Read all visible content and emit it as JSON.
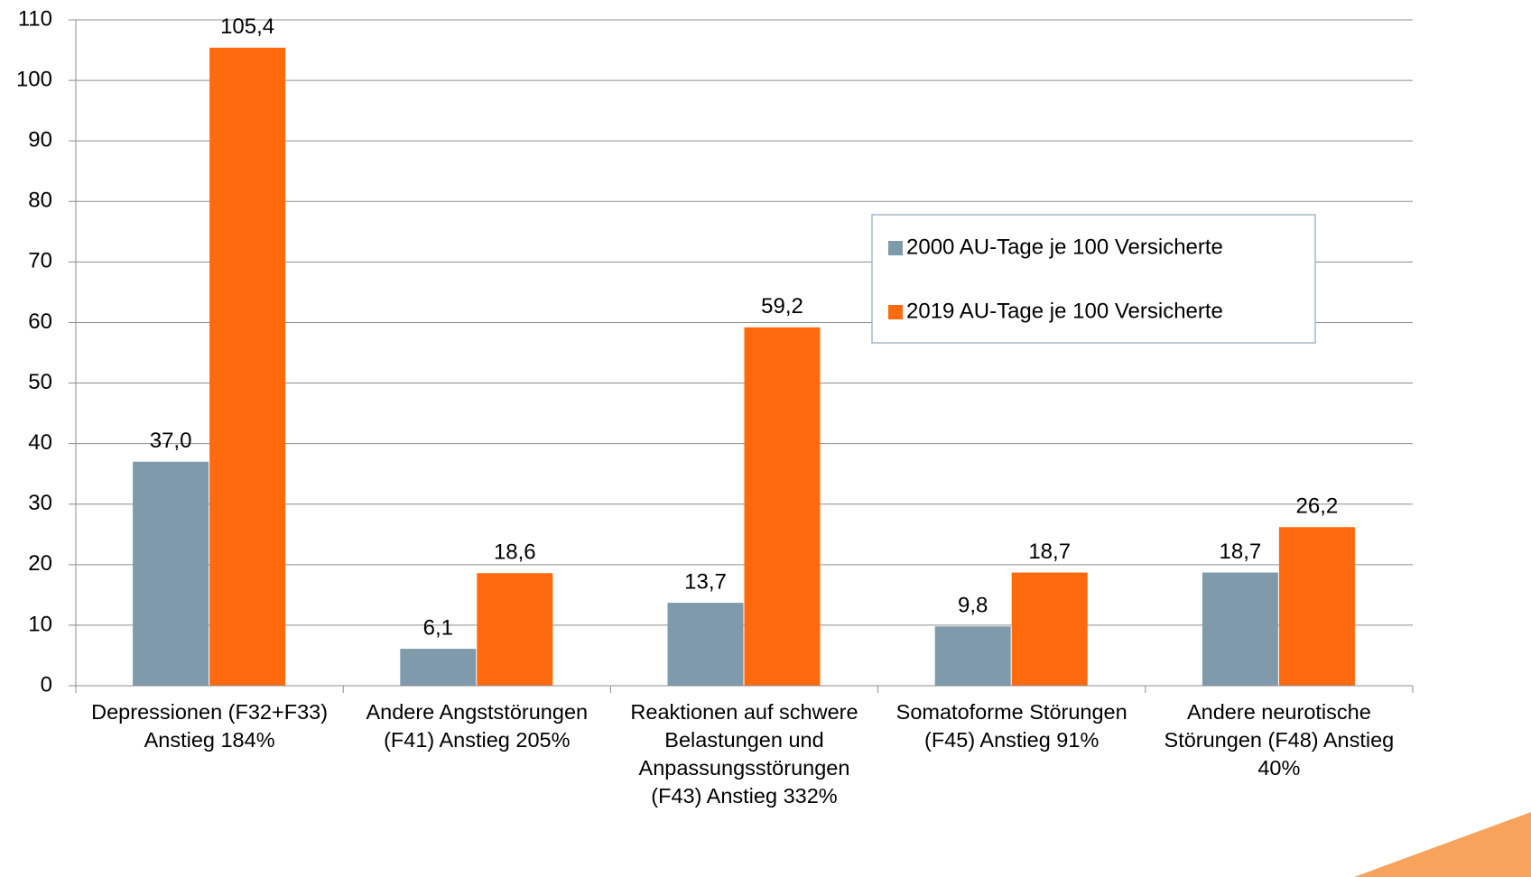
{
  "chart_data": {
    "type": "bar",
    "categories": [
      "Depressionen (F32+F33) Anstieg 184%",
      "Andere Angststörungen (F41) Anstieg 205%",
      "Reaktionen auf schwere Belastungen und Anpassungsstörungen (F43) Anstieg 332%",
      "Somatoforme Störungen (F45) Anstieg 91%",
      "Andere neurotische Störungen (F48) Anstieg 40%"
    ],
    "series": [
      {
        "name": "2000 AU-Tage je 100 Versicherte",
        "color": "#7f9bab",
        "values": [
          37.0,
          6.1,
          13.7,
          9.8,
          18.7
        ],
        "value_labels": [
          "37,0",
          "6,1",
          "13,7",
          "9,8",
          "18,7"
        ]
      },
      {
        "name": "2019 AU-Tage je 100 Versicherte",
        "color": "#ff6a0f",
        "values": [
          105.4,
          18.6,
          59.2,
          18.7,
          26.2
        ],
        "value_labels": [
          "105,4",
          "18,6",
          "59,2",
          "18,7",
          "26,2"
        ]
      }
    ],
    "ylim": [
      0,
      110
    ],
    "yticks": [
      0,
      10,
      20,
      30,
      40,
      50,
      60,
      70,
      80,
      90,
      100,
      110
    ],
    "grid": true,
    "legend": "right"
  }
}
